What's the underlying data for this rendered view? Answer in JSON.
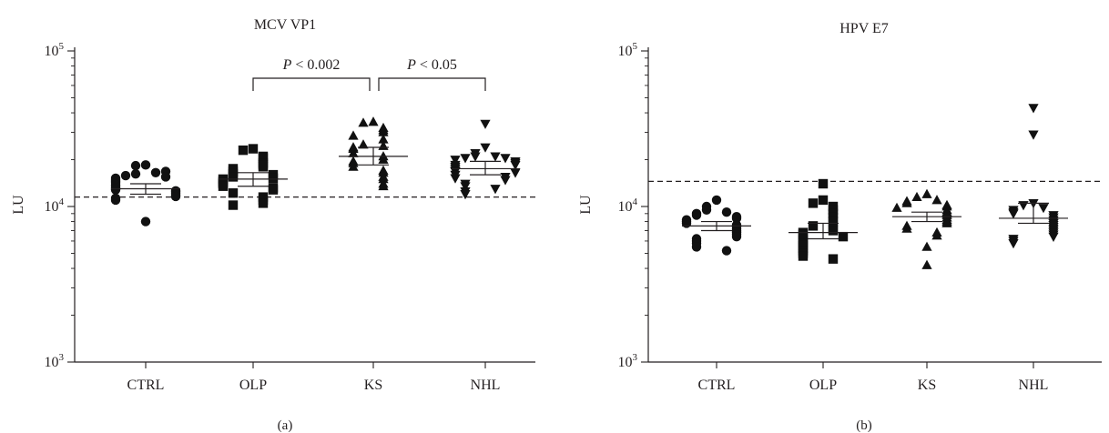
{
  "chart_data": [
    {
      "type": "scatter",
      "title": "MCV VP1",
      "panel_label": "(a)",
      "ylabel": "LU",
      "yscale": "log",
      "ylim": [
        1000,
        100000
      ],
      "y_ticks": [
        {
          "value": 1000,
          "base": "10",
          "exp": "3"
        },
        {
          "value": 10000,
          "base": "10",
          "exp": "4"
        },
        {
          "value": 100000,
          "base": "10",
          "exp": "5"
        }
      ],
      "categories": [
        "CTRL",
        "OLP",
        "KS",
        "NHL"
      ],
      "threshold": 11500,
      "comparisons": [
        {
          "from": 1,
          "to": 2,
          "p_label": "P",
          "p_text": " < 0.002"
        },
        {
          "from": 2,
          "to": 3,
          "p_label": "P",
          "p_text": " < 0.05"
        }
      ],
      "series": [
        {
          "marker": "circle",
          "mean": 13000,
          "ci": [
            12000,
            14000
          ],
          "values": [
            18500,
            18300,
            16500,
            16200,
            16800,
            15800,
            15500,
            15200,
            14800,
            14500,
            14200,
            13800,
            13500,
            13200,
            13000,
            12800,
            12600,
            12400,
            12100,
            11800,
            11600,
            11300,
            11000,
            8000
          ]
        },
        {
          "marker": "square",
          "mean": 15000,
          "ci": [
            13500,
            16500
          ],
          "values": [
            23500,
            23000,
            21000,
            20500,
            19000,
            18500,
            18000,
            17500,
            16800,
            16200,
            16000,
            15500,
            15200,
            15000,
            14500,
            14200,
            14000,
            13500,
            13200,
            12800,
            12200,
            11500,
            11000,
            10500,
            10200
          ]
        },
        {
          "marker": "triangle-up",
          "mean": 21000,
          "ci": [
            18500,
            24000
          ],
          "values": [
            35000,
            34500,
            32000,
            31000,
            30000,
            28500,
            27000,
            25000,
            24500,
            24000,
            23500,
            22000,
            21000,
            20000,
            19500,
            19000,
            18000,
            17000,
            16500,
            15500,
            15000,
            14000,
            13500
          ]
        },
        {
          "marker": "triangle-down",
          "mean": 17500,
          "ci": [
            16000,
            19500
          ],
          "values": [
            34000,
            24000,
            22000,
            21000,
            21000,
            20500,
            20500,
            20000,
            19500,
            19000,
            18500,
            18500,
            18000,
            17500,
            17000,
            16800,
            16500,
            16000,
            15500,
            15200,
            14800,
            14000,
            13500,
            13000,
            12500,
            12000
          ]
        }
      ]
    },
    {
      "type": "scatter",
      "title": "HPV E7",
      "panel_label": "(b)",
      "ylabel": "LU",
      "yscale": "log",
      "ylim": [
        1000,
        100000
      ],
      "y_ticks": [
        {
          "value": 1000,
          "base": "10",
          "exp": "3"
        },
        {
          "value": 10000,
          "base": "10",
          "exp": "4"
        },
        {
          "value": 100000,
          "base": "10",
          "exp": "5"
        }
      ],
      "categories": [
        "CTRL",
        "OLP",
        "KS",
        "NHL"
      ],
      "threshold": 14500,
      "comparisons": [],
      "series": [
        {
          "marker": "circle",
          "mean": 7500,
          "ci": [
            7000,
            8000
          ],
          "values": [
            11000,
            10000,
            9500,
            9200,
            9000,
            8800,
            8600,
            8400,
            8200,
            8000,
            7800,
            7600,
            7400,
            7200,
            7000,
            6800,
            6600,
            6400,
            6200,
            6000,
            5800,
            5500,
            5200
          ]
        },
        {
          "marker": "square",
          "mean": 6800,
          "ci": [
            6200,
            7800
          ],
          "values": [
            14000,
            11000,
            10500,
            10000,
            9500,
            9000,
            8500,
            8000,
            7500,
            7200,
            7000,
            6800,
            6600,
            6400,
            6200,
            6000,
            5800,
            5600,
            5400,
            5200,
            5000,
            4800,
            4600
          ]
        },
        {
          "marker": "triangle-up",
          "mean": 8600,
          "ci": [
            8000,
            9200
          ],
          "values": [
            12000,
            11500,
            11000,
            10800,
            10500,
            10200,
            10000,
            9800,
            9500,
            9200,
            9000,
            8800,
            8500,
            8200,
            8000,
            7800,
            7500,
            7200,
            6800,
            6500,
            5500,
            4200
          ]
        },
        {
          "marker": "triangle-down",
          "mean": 8400,
          "ci": [
            7800,
            10500
          ],
          "values": [
            43000,
            29000,
            10500,
            10200,
            9800,
            9500,
            9200,
            9000,
            8800,
            8500,
            8200,
            8000,
            7800,
            7600,
            7400,
            7200,
            7000,
            6800,
            6600,
            6400,
            6200,
            6000,
            5800
          ]
        }
      ]
    }
  ]
}
